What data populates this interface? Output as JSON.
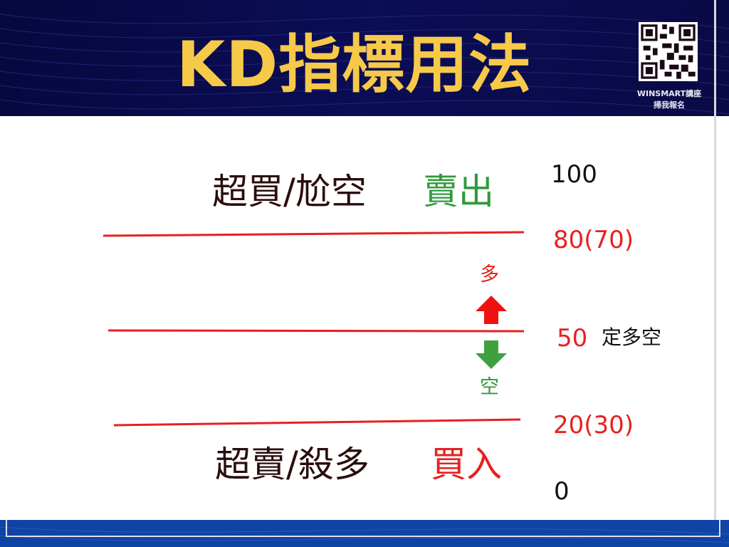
{
  "header": {
    "title": "KD指標用法",
    "qr_caption_line1": "WINSMART講座",
    "qr_caption_line2": "掃我報名"
  },
  "diagram": {
    "overbought_label": "超買/尬空",
    "overbought_action": "賣出",
    "oversold_label": "超賣/殺多",
    "oversold_action": "買入",
    "level_100": "100",
    "level_80": "80(70)",
    "level_50": "50",
    "level_50_note": "定多空",
    "level_20": "20(30)",
    "level_0": "0",
    "up_label": "多",
    "down_label": "空"
  },
  "colors": {
    "header_bg": "#0a0a4a",
    "title": "#f7c948",
    "line": "#e82020",
    "sell": "#2f9a3c",
    "buy": "#e82020",
    "footer_bg": "#0d44a6"
  },
  "icons": {
    "up": "arrow-up-icon",
    "down": "arrow-down-icon",
    "qr": "qr-code-icon"
  }
}
